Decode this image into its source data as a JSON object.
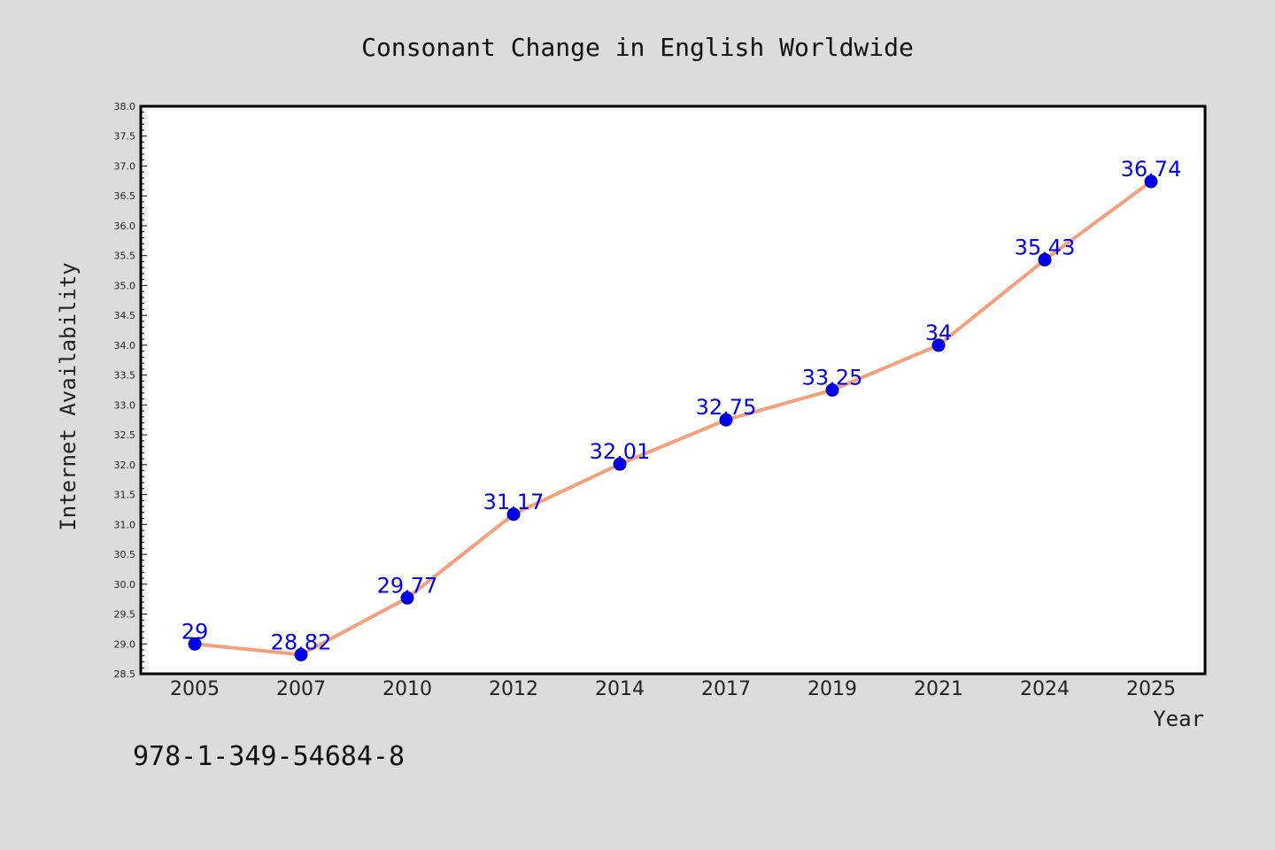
{
  "colors": {
    "background": "#dcdcdc",
    "plot_background": "#ffffff",
    "line": "#f4a07c",
    "marker": "#0000ee",
    "data_label": "#0000ee"
  },
  "footer": {
    "isbn": "978-1-349-54684-8"
  },
  "chart_data": {
    "type": "line",
    "title": "Consonant Change in English Worldwide",
    "xlabel": "Year",
    "ylabel": "Internet Availability",
    "categories": [
      "2005",
      "2007",
      "2010",
      "2012",
      "2014",
      "2017",
      "2019",
      "2021",
      "2024",
      "2025"
    ],
    "series": [
      {
        "values": [
          29,
          28.82,
          29.77,
          31.17,
          32.01,
          32.75,
          33.25,
          34,
          35.43,
          36.74
        ],
        "labels": [
          "29",
          "28.82",
          "29.77",
          "31.17",
          "32.01",
          "32.75",
          "33.25",
          "34",
          "35.43",
          "36.74"
        ]
      }
    ],
    "ylim": [
      28.5,
      38.0
    ],
    "ytick_step": 0.5,
    "grid": false,
    "legend": "none"
  }
}
